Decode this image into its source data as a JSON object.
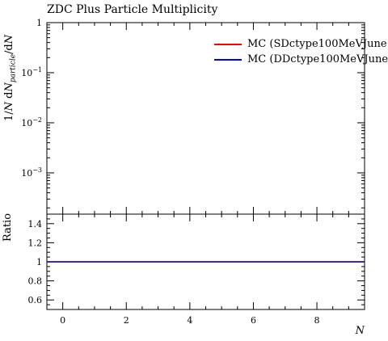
{
  "title": "ZDC Plus Particle Multiplicity",
  "chart_data": [
    {
      "type": "line",
      "title": "ZDC Plus Particle Multiplicity",
      "ylabel": "1/N dN_particle/dN",
      "ylim": [
        0.00015,
        1
      ],
      "yscale": "log",
      "y_ticks": [
        {
          "value": 1,
          "label": "1"
        },
        {
          "value": 0.1,
          "label": "10^-1"
        },
        {
          "value": 0.01,
          "label": "10^-2"
        },
        {
          "value": 0.001,
          "label": "10^-3"
        }
      ],
      "legend": "top-right",
      "series": [
        {
          "name": "MC (SDctype100MeVJune",
          "color": "#ff0000",
          "x": [],
          "y": []
        },
        {
          "name": "MC (DDctype100MeVJune",
          "color": "#0000ff",
          "x": [],
          "y": []
        }
      ]
    },
    {
      "type": "line",
      "ylabel": "Ratio",
      "xlabel": "N",
      "xlim": [
        -0.5,
        9.5
      ],
      "ylim": [
        0.5,
        1.5
      ],
      "x_ticks": [
        0,
        2,
        4,
        6,
        8
      ],
      "y_ticks": [
        0.6,
        0.8,
        1,
        1.2,
        1.4
      ],
      "series": [
        {
          "color": "#ff0000",
          "x": [
            -0.5,
            9.5
          ],
          "y": [
            1,
            1
          ]
        },
        {
          "color": "#0000ff",
          "x": [
            -0.5,
            9.5
          ],
          "y": [
            1,
            1
          ]
        }
      ]
    }
  ]
}
